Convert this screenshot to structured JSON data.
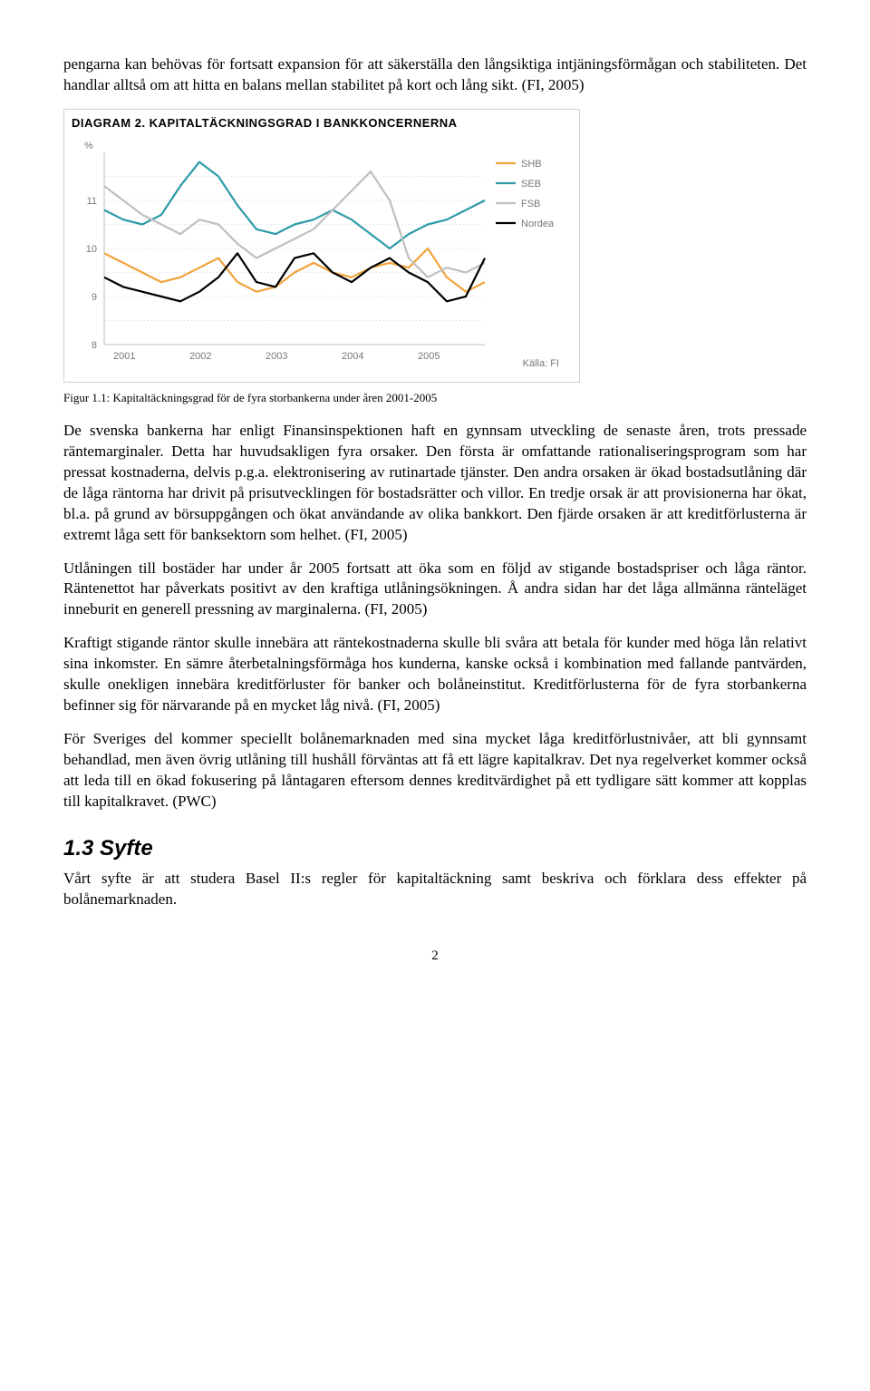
{
  "intro_paragraph": "pengarna kan behövas för fortsatt expansion för att säkerställa den långsiktiga intjäningsförmågan och stabiliteten. Det handlar alltså om att hitta en balans mellan stabilitet på kort och lång sikt. (FI, 2005)",
  "chart": {
    "type": "line",
    "title": "DIAGRAM 2. KAPITALTÄCKNINGSGRAD I BANKKONCERNERNA",
    "title_fontsize": 13,
    "y_unit_label": "%",
    "background_color": "#ffffff",
    "grid_color": "#d9d9d9",
    "grid_dash": "1,3",
    "axis_color": "#bfbfbf",
    "label_fontsize": 11,
    "label_color": "#777777",
    "x_categories": [
      "2001",
      "2002",
      "2003",
      "2004",
      "2005"
    ],
    "x_points_per_category": 4,
    "ylim": [
      8,
      12
    ],
    "yticks": [
      8,
      9,
      10,
      11
    ],
    "line_width": 2.2,
    "legend_position": "right",
    "source_label": "Källa: FI",
    "series": [
      {
        "name": "SHB",
        "color": "#f2a23a",
        "values": [
          9.9,
          9.7,
          9.5,
          9.3,
          9.4,
          9.6,
          9.8,
          9.3,
          9.1,
          9.2,
          9.5,
          9.7,
          9.5,
          9.4,
          9.6,
          9.7,
          9.6,
          10.0,
          9.4,
          9.1,
          9.3
        ]
      },
      {
        "name": "SEB",
        "color": "#2e9aa8",
        "values": [
          10.8,
          10.6,
          10.5,
          10.7,
          11.3,
          11.8,
          11.5,
          10.9,
          10.4,
          10.3,
          10.5,
          10.6,
          10.8,
          10.6,
          10.3,
          10.0,
          10.3,
          10.5,
          10.6,
          10.8,
          11.0
        ]
      },
      {
        "name": "FSB",
        "color": "#bfbfbf",
        "values": [
          11.3,
          11.0,
          10.7,
          10.5,
          10.3,
          10.6,
          10.5,
          10.1,
          9.8,
          10.0,
          10.2,
          10.4,
          10.8,
          11.2,
          11.6,
          11.0,
          9.8,
          9.4,
          9.6,
          9.5,
          9.7
        ]
      },
      {
        "name": "Nordea",
        "color": "#000000",
        "values": [
          9.4,
          9.2,
          9.1,
          9.0,
          8.9,
          9.1,
          9.4,
          9.9,
          9.3,
          9.2,
          9.8,
          9.9,
          9.5,
          9.3,
          9.6,
          9.8,
          9.5,
          9.3,
          8.9,
          9.0,
          9.8
        ]
      }
    ]
  },
  "figure_caption": "Figur 1.1: Kapitaltäckningsgrad för de fyra storbankerna under åren 2001-2005",
  "para2": "De svenska bankerna har enligt Finansinspektionen haft en gynnsam utveckling de senaste åren, trots pressade räntemarginaler. Detta har huvudsakligen fyra orsaker. Den första är omfattande rationaliseringsprogram som har pressat kostnaderna, delvis p.g.a. elektronisering av rutinartade tjänster. Den andra orsaken är ökad bostadsutlåning där de låga räntorna har drivit på prisutvecklingen för bostadsrätter och villor. En tredje orsak är att provisionerna har ökat, bl.a. på grund av börsuppgången och ökat användande av olika bankkort. Den fjärde orsaken är att kreditförlusterna är extremt låga sett för banksektorn som helhet. (FI, 2005)",
  "para3": "Utlåningen till bostäder har under år 2005 fortsatt att öka som en följd av stigande bostadspriser och låga räntor. Räntenettot har påverkats positivt av den kraftiga utlåningsökningen. Å andra sidan har det låga allmänna ränteläget inneburit en generell pressning av marginalerna. (FI, 2005)",
  "para4": "Kraftigt stigande räntor skulle innebära att räntekostnaderna skulle bli svåra att betala för kunder med höga lån relativt sina inkomster. En sämre återbetalningsförmåga hos kunderna, kanske också i kombination med fallande pantvärden, skulle onekligen innebära kreditförluster för banker och bolåneinstitut. Kreditförlusterna för de fyra storbankerna befinner sig för närvarande på en mycket låg nivå. (FI, 2005)",
  "para5": "För Sveriges del kommer speciellt bolånemarknaden med sina mycket låga kreditförlustnivåer, att bli gynnsamt behandlad, men även övrig utlåning till hushåll förväntas att få ett lägre kapitalkrav. Det nya regelverket kommer också att leda till en ökad fokusering på låntagaren eftersom dennes kreditvärdighet på ett tydligare sätt kommer att kopplas till kapitalkravet. (PWC)",
  "heading_syfte": "1.3 Syfte",
  "para_syfte": "Vårt syfte är att studera Basel II:s regler för kapitaltäckning samt beskriva och förklara dess effekter på bolånemarknaden.",
  "page_number": "2"
}
